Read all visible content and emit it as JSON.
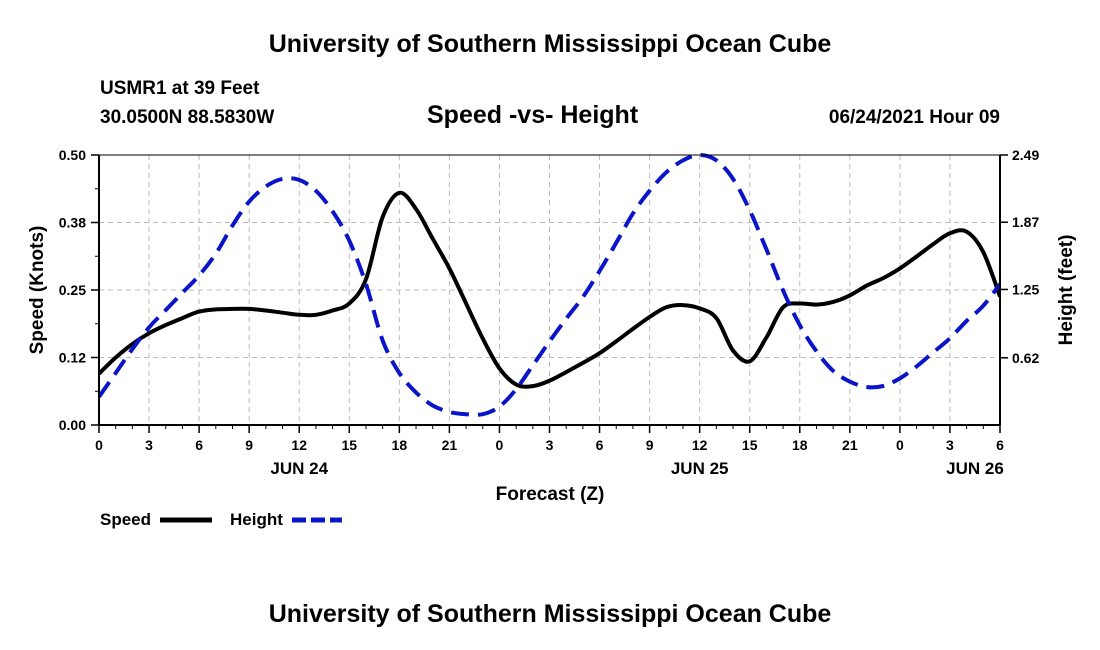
{
  "header": {
    "title_top": "University of Southern Mississippi Ocean Cube",
    "station": "USMR1 at 39 Feet",
    "coords": "30.0500N  88.5830W",
    "chart_title": "Speed -vs- Height",
    "datetime": "06/24/2021 Hour 09",
    "title_bottom": "University of Southern Mississippi Ocean Cube"
  },
  "legend": {
    "speed_label": "Speed",
    "height_label": "Height"
  },
  "colors": {
    "speed": "#000000",
    "height": "#0a14c8",
    "grid": "#bbbbbb"
  },
  "chart_data": {
    "type": "line",
    "title": "Speed -vs- Height",
    "xlabel": "Forecast (Z)",
    "ylabel_left": "Speed (Knots)",
    "ylabel_right": "Height (feet)",
    "xlim_hours": [
      0,
      54
    ],
    "ylim_left": [
      0,
      0.5
    ],
    "ylim_right": [
      0,
      2.49
    ],
    "x_tick_hours": [
      0,
      3,
      6,
      9,
      12,
      15,
      18,
      21,
      24,
      27,
      30,
      33,
      36,
      39,
      42,
      45,
      48,
      51,
      54
    ],
    "x_tick_labels": [
      "0",
      "3",
      "6",
      "9",
      "12",
      "15",
      "18",
      "21",
      "0",
      "3",
      "6",
      "9",
      "12",
      "15",
      "18",
      "21",
      "0",
      "3",
      "6"
    ],
    "date_labels": [
      {
        "hour": 12,
        "label": "JUN 24"
      },
      {
        "hour": 36,
        "label": "JUN 25"
      },
      {
        "hour": 52.5,
        "label": "JUN 26"
      }
    ],
    "y_left_ticks": [
      "0.00",
      "0.12",
      "0.25",
      "0.38",
      "0.50"
    ],
    "y_left_tick_values": [
      0,
      0.125,
      0.25,
      0.375,
      0.5
    ],
    "y_right_ticks": [
      "0.62",
      "1.25",
      "1.87",
      "2.49"
    ],
    "y_right_tick_values": [
      0.62,
      1.25,
      1.87,
      2.49
    ],
    "series": [
      {
        "name": "Speed",
        "axis": "left",
        "style": "solid",
        "x": [
          0,
          1,
          2,
          3,
          4,
          5,
          6,
          7,
          8,
          9,
          10,
          11,
          12,
          13,
          14,
          15,
          16,
          17,
          18,
          19,
          20,
          21,
          22,
          23,
          24,
          25,
          26,
          27,
          28,
          29,
          30,
          31,
          32,
          33,
          34,
          35,
          36,
          37,
          38,
          39,
          40,
          41,
          42,
          43,
          44,
          45,
          46,
          47,
          48,
          49,
          50,
          51,
          52,
          53,
          54
        ],
        "values": [
          0.095,
          0.125,
          0.15,
          0.17,
          0.185,
          0.198,
          0.21,
          0.214,
          0.215,
          0.215,
          0.212,
          0.208,
          0.204,
          0.204,
          0.212,
          0.225,
          0.27,
          0.385,
          0.43,
          0.4,
          0.345,
          0.29,
          0.225,
          0.16,
          0.105,
          0.075,
          0.072,
          0.082,
          0.098,
          0.115,
          0.133,
          0.155,
          0.178,
          0.2,
          0.218,
          0.222,
          0.216,
          0.198,
          0.138,
          0.118,
          0.162,
          0.218,
          0.225,
          0.223,
          0.228,
          0.24,
          0.258,
          0.272,
          0.29,
          0.312,
          0.335,
          0.355,
          0.358,
          0.32,
          0.238
        ]
      },
      {
        "name": "Height",
        "axis": "right",
        "style": "dashed",
        "x": [
          0,
          1,
          2,
          3,
          4,
          5,
          6,
          7,
          8,
          9,
          10,
          11,
          12,
          13,
          14,
          15,
          16,
          17,
          18,
          19,
          20,
          21,
          22,
          23,
          24,
          25,
          26,
          27,
          28,
          29,
          30,
          31,
          32,
          33,
          34,
          35,
          36,
          37,
          38,
          39,
          40,
          41,
          42,
          43,
          44,
          45,
          46,
          47,
          48,
          49,
          50,
          51,
          52,
          53,
          54
        ],
        "values": [
          0.26,
          0.48,
          0.7,
          0.9,
          1.06,
          1.22,
          1.38,
          1.58,
          1.84,
          2.06,
          2.2,
          2.27,
          2.26,
          2.16,
          1.97,
          1.7,
          1.3,
          0.78,
          0.48,
          0.3,
          0.18,
          0.12,
          0.1,
          0.1,
          0.17,
          0.33,
          0.55,
          0.77,
          0.98,
          1.18,
          1.42,
          1.68,
          1.95,
          2.16,
          2.33,
          2.44,
          2.49,
          2.44,
          2.27,
          1.98,
          1.62,
          1.24,
          0.92,
          0.68,
          0.5,
          0.4,
          0.35,
          0.36,
          0.43,
          0.54,
          0.67,
          0.8,
          0.96,
          1.1,
          1.3
        ]
      }
    ]
  }
}
